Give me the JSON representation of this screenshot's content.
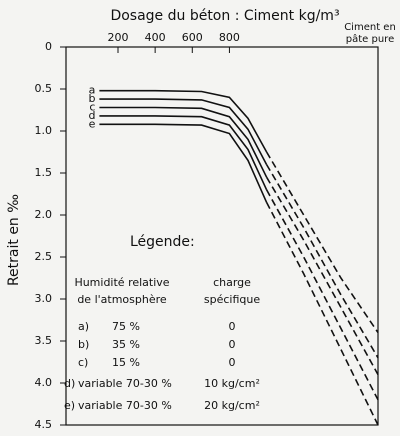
{
  "chart_data": {
    "type": "line",
    "title": "Dosage du béton : Ciment kg/m³",
    "x_end_label": "Ciment en pâte pure",
    "ylabel": "Retrait en ‰",
    "x": [
      100,
      400,
      650,
      800,
      900,
      1000,
      1200,
      1400,
      1600
    ],
    "xlim": [
      -80,
      1600
    ],
    "xticks": [
      200,
      400,
      600,
      800
    ],
    "ylim": [
      0,
      4.5
    ],
    "y_inverted": true,
    "yticks": [
      0,
      0.5,
      {
        "value": 1,
        "label": "1.0"
      },
      1.5,
      {
        "value": 2,
        "label": "2.0"
      },
      2.5,
      {
        "value": 3,
        "label": "3.0"
      },
      3.5,
      {
        "value": 4,
        "label": "4.0"
      },
      4.5
    ],
    "color": "#111111",
    "series": [
      {
        "name": "a",
        "values": [
          0.52,
          0.52,
          0.53,
          0.6,
          0.85,
          1.25,
          null,
          null,
          null
        ],
        "dashed_values": [
          null,
          null,
          null,
          null,
          null,
          1.25,
          2.0,
          2.75,
          3.4
        ]
      },
      {
        "name": "b",
        "values": [
          0.62,
          0.62,
          0.63,
          0.72,
          0.98,
          1.4,
          null,
          null,
          null
        ],
        "dashed_values": [
          null,
          null,
          null,
          null,
          null,
          1.4,
          2.15,
          2.95,
          3.7
        ]
      },
      {
        "name": "c",
        "values": [
          0.72,
          0.72,
          0.73,
          0.83,
          1.1,
          1.55,
          null,
          null,
          null
        ],
        "dashed_values": [
          null,
          null,
          null,
          null,
          null,
          1.55,
          2.3,
          3.1,
          3.9
        ]
      },
      {
        "name": "d",
        "values": [
          0.82,
          0.82,
          0.83,
          0.93,
          1.22,
          1.7,
          null,
          null,
          null
        ],
        "dashed_values": [
          null,
          null,
          null,
          null,
          null,
          1.7,
          2.5,
          3.35,
          4.2
        ]
      },
      {
        "name": "e",
        "values": [
          0.92,
          0.92,
          0.93,
          1.03,
          1.35,
          1.85,
          null,
          null,
          null
        ],
        "dashed_values": [
          null,
          null,
          null,
          null,
          null,
          1.85,
          2.7,
          3.6,
          4.5
        ]
      }
    ],
    "legend_table": {
      "title": "Légende:",
      "headers": [
        [
          "Humidité relative",
          "de l'atmosphère"
        ],
        [
          "charge",
          "spécifique"
        ]
      ],
      "rows": [
        [
          "a)",
          "75 %",
          "0"
        ],
        [
          "b)",
          "35 %",
          "0"
        ],
        [
          "c)",
          "15 %",
          "0"
        ],
        [
          "d)",
          "variable 70-30 %",
          "10 kg/cm²"
        ],
        [
          "e)",
          "variable 70-30 %",
          "20 kg/cm²"
        ]
      ]
    }
  }
}
